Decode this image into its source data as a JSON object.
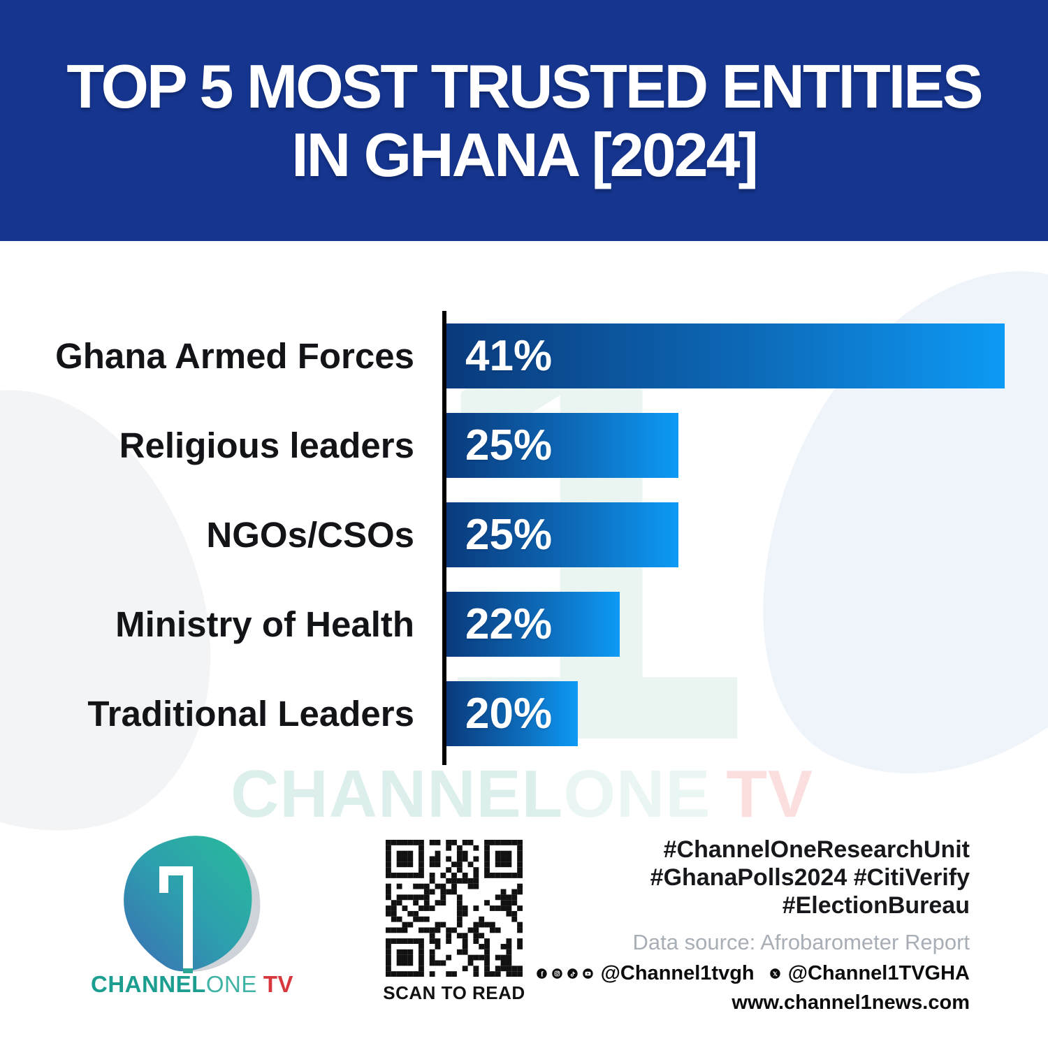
{
  "header": {
    "title_line1": "TOP 5 MOST TRUSTED ENTITIES",
    "title_line2": "IN GHANA [2024]",
    "bg_color": "#15358e",
    "text_color": "#ffffff"
  },
  "chart_data": {
    "type": "bar",
    "orientation": "horizontal",
    "title": "TOP 5 MOST TRUSTED ENTITIES IN GHANA [2024]",
    "categories": [
      "Ghana Armed Forces",
      "Religious leaders",
      "NGOs/CSOs",
      "Ministry of Health",
      "Traditional Leaders"
    ],
    "values": [
      41,
      25,
      25,
      22,
      20
    ],
    "value_labels": [
      "41%",
      "25%",
      "25%",
      "22%",
      "20%"
    ],
    "grid": false,
    "axis_line_color": "#000000",
    "bar_gradient_start": "#0a3a7c",
    "bar_gradient_mid": "#0d6ab8",
    "bar_gradient_end": "#0d9af5",
    "value_label_color": "#ffffff",
    "category_label_color": "#121417",
    "bar_display_width_pct": [
      53.3,
      22.1,
      22.1,
      16.5,
      12.5
    ]
  },
  "watermark": {
    "part_channel": "CHANNEL",
    "part_one": "ONE",
    "part_tv": "TV"
  },
  "footer": {
    "logo": {
      "wordmark_channel": "CHANNEL",
      "wordmark_one": "ONE",
      "wordmark_tv": "TV",
      "channel_color": "#1b9e8f",
      "one_color": "#3fb3a4",
      "tv_color": "#d8373d"
    },
    "qr_caption": "SCAN TO READ",
    "hashtags": [
      "#ChannelOneResearchUnit",
      "#GhanaPolls2024 #CitiVerify",
      "#ElectionBureau"
    ],
    "data_source": "Data source: Afrobarometer Report",
    "social": {
      "handle_main": "@Channel1tvgh",
      "handle_x": "@Channel1TVGHA"
    },
    "website": "www.channel1news.com"
  }
}
